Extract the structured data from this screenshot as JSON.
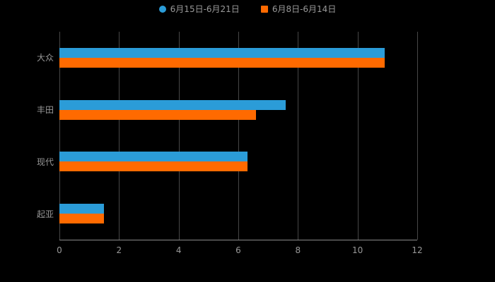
{
  "chart_data": {
    "type": "bar",
    "orientation": "horizontal",
    "title": "",
    "xlabel": "",
    "ylabel": "",
    "categories": [
      "大众",
      "丰田",
      "现代",
      "起亚"
    ],
    "series": [
      {
        "name": "6月15日-6月21日",
        "color": "#2B9CD8",
        "values": [
          10.9,
          7.6,
          6.3,
          1.5
        ]
      },
      {
        "name": "6月8日-6月14日",
        "color": "#FF6A00",
        "values": [
          10.9,
          6.6,
          6.3,
          1.5
        ]
      }
    ],
    "ticks": [
      0,
      2,
      4,
      6,
      8,
      10,
      12
    ],
    "xmax": 12,
    "xlim": [
      0,
      12
    ],
    "grid": true,
    "legend_position": "top",
    "background_color": "#000000",
    "text_color": "#999999"
  }
}
